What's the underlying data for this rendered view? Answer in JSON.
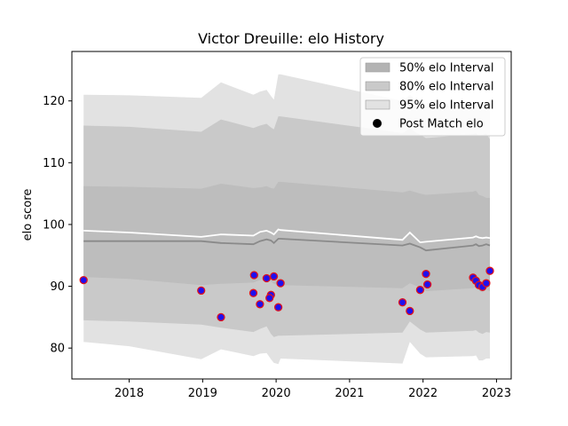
{
  "chart_data": {
    "type": "line",
    "title": "Victor Dreuille: elo History",
    "xlabel": "",
    "ylabel": "elo score",
    "xlim": [
      2017.22,
      2023.2
    ],
    "ylim": [
      75,
      128
    ],
    "xticks": [
      2018,
      2019,
      2020,
      2021,
      2022,
      2023
    ],
    "yticks": [
      80,
      90,
      100,
      110,
      120
    ],
    "grid": false,
    "legend_position": "top-right",
    "legend": [
      {
        "label": "50% elo Interval",
        "kind": "band",
        "color": "#b3b3b3"
      },
      {
        "label": "80% elo Interval",
        "kind": "band",
        "color": "#c9c9c9"
      },
      {
        "label": "95% elo Interval",
        "kind": "band",
        "color": "#e2e2e2"
      },
      {
        "label": "Post Match elo",
        "kind": "marker",
        "color": "#000000"
      }
    ],
    "x": [
      2017.38,
      2018.0,
      2018.98,
      2019.25,
      2019.69,
      2019.78,
      2019.87,
      2019.93,
      2019.97,
      2020.03,
      2020.06,
      2021.72,
      2021.82,
      2021.96,
      2022.04,
      2022.68,
      2022.72,
      2022.76,
      2022.81,
      2022.86,
      2022.91
    ],
    "series": [
      {
        "name": "95% upper",
        "values": [
          121,
          120.9,
          120.5,
          123.0,
          121.0,
          121.5,
          121.8,
          120.8,
          120.2,
          124.3,
          124.3,
          120.0,
          121.0,
          119.5,
          119.0,
          119.5,
          119.8,
          119.2,
          119.5,
          119.8,
          119.0
        ]
      },
      {
        "name": "80% upper",
        "values": [
          116,
          115.8,
          115.0,
          117.0,
          115.6,
          116.0,
          116.3,
          115.7,
          115.4,
          117.5,
          117.5,
          114.8,
          115.5,
          114.5,
          114.0,
          114.6,
          114.8,
          114.3,
          114.5,
          114.7,
          113.8
        ]
      },
      {
        "name": "50% upper",
        "values": [
          106.2,
          106.1,
          105.8,
          106.6,
          105.9,
          106.0,
          106.2,
          105.9,
          105.8,
          106.9,
          106.9,
          105.2,
          105.5,
          105.0,
          104.8,
          105.3,
          105.5,
          104.8,
          104.6,
          104.3,
          104.3
        ]
      },
      {
        "name": "Mean elo",
        "values": [
          99.0,
          98.7,
          98.0,
          98.4,
          98.2,
          98.8,
          99.0,
          98.7,
          98.4,
          99.2,
          99.1,
          97.5,
          98.7,
          97.1,
          97.2,
          97.9,
          98.1,
          97.9,
          97.8,
          97.9,
          97.8
        ]
      },
      {
        "name": "Median elo",
        "values": [
          97.3,
          97.3,
          97.3,
          97.0,
          96.8,
          97.3,
          97.6,
          97.4,
          97.0,
          97.7,
          97.7,
          96.6,
          96.9,
          96.3,
          95.8,
          96.6,
          96.8,
          96.5,
          96.6,
          96.8,
          96.6
        ]
      },
      {
        "name": "50% lower",
        "values": [
          91.5,
          91.2,
          90.2,
          90.4,
          90.6,
          91.0,
          91.2,
          90.8,
          90.4,
          90.2,
          90.2,
          89.7,
          90.5,
          89.8,
          89.2,
          89.7,
          89.9,
          89.3,
          89.0,
          89.5,
          89.2
        ]
      },
      {
        "name": "80% lower",
        "values": [
          84.5,
          84.3,
          83.8,
          83.3,
          82.6,
          83.1,
          83.5,
          82.3,
          81.8,
          82.0,
          82.0,
          82.5,
          84.3,
          83.0,
          82.5,
          82.8,
          82.9,
          82.5,
          82.3,
          82.6,
          82.5
        ]
      },
      {
        "name": "95% lower",
        "values": [
          81.0,
          80.3,
          78.2,
          79.8,
          78.7,
          79.1,
          79.2,
          78.2,
          77.6,
          77.4,
          78.3,
          77.5,
          81.0,
          79.1,
          78.5,
          78.7,
          78.8,
          78.0,
          78.0,
          78.3,
          78.3
        ]
      },
      {
        "name": "Post Match elo",
        "values": [
          91.0,
          null,
          89.3,
          85.0,
          88.9,
          87.1,
          91.3,
          88.6,
          91.6,
          86.6,
          90.5,
          87.4,
          86.0,
          89.4,
          92.0,
          91.4,
          90.9,
          90.2,
          89.9,
          90.5,
          92.5
        ],
        "extra": [
          {
            "x": 2019.7,
            "y": 91.8
          },
          {
            "x": 2019.91,
            "y": 88.1
          },
          {
            "x": 2022.06,
            "y": 90.3
          }
        ]
      }
    ]
  }
}
